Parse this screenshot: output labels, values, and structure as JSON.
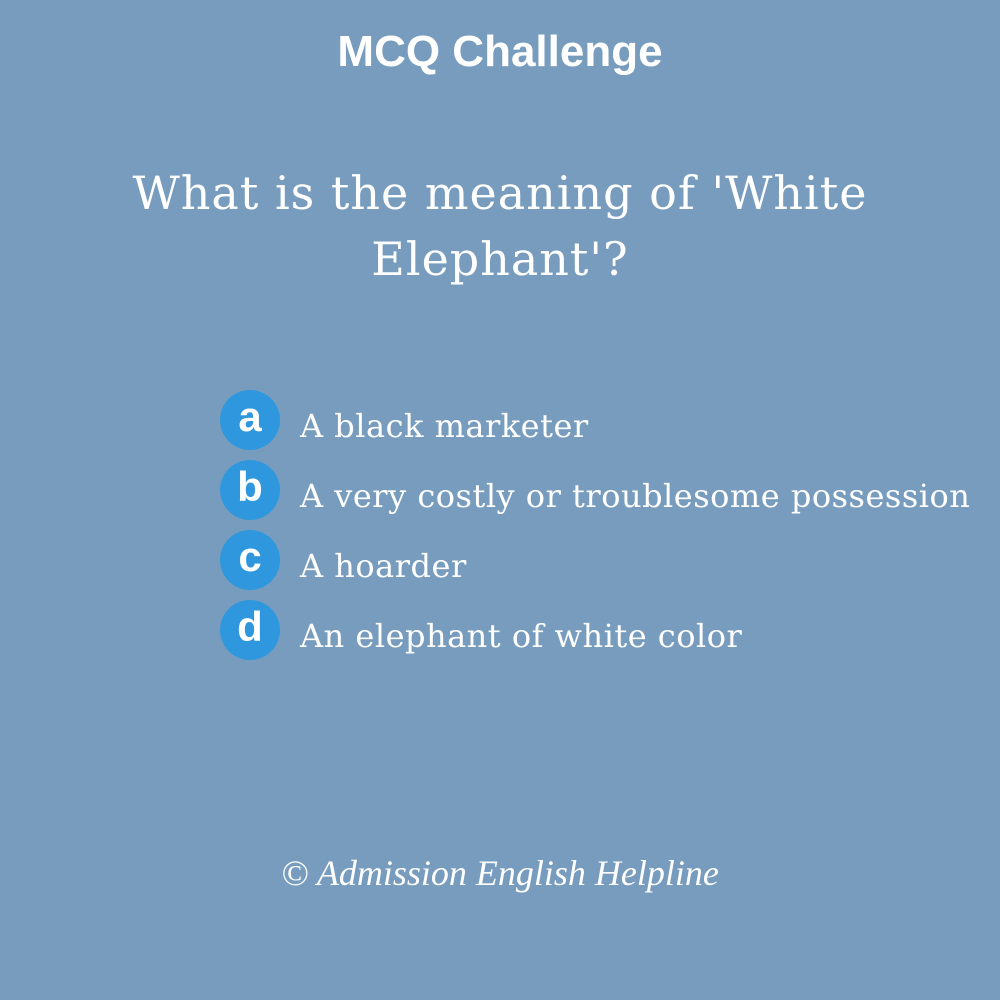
{
  "header": {
    "title": "MCQ Challenge"
  },
  "question": {
    "text": "What is the meaning of 'White Elephant'?"
  },
  "options": [
    {
      "letter": "a",
      "text": "A black marketer"
    },
    {
      "letter": "b",
      "text": "A very costly or troublesome possession"
    },
    {
      "letter": "c",
      "text": "A hoarder"
    },
    {
      "letter": "d",
      "text": "An elephant of white color"
    }
  ],
  "footer": {
    "credit": "© Admission English Helpline"
  },
  "colors": {
    "background": "#779cbd",
    "badge": "#2f97dd",
    "text": "#ffffff"
  }
}
